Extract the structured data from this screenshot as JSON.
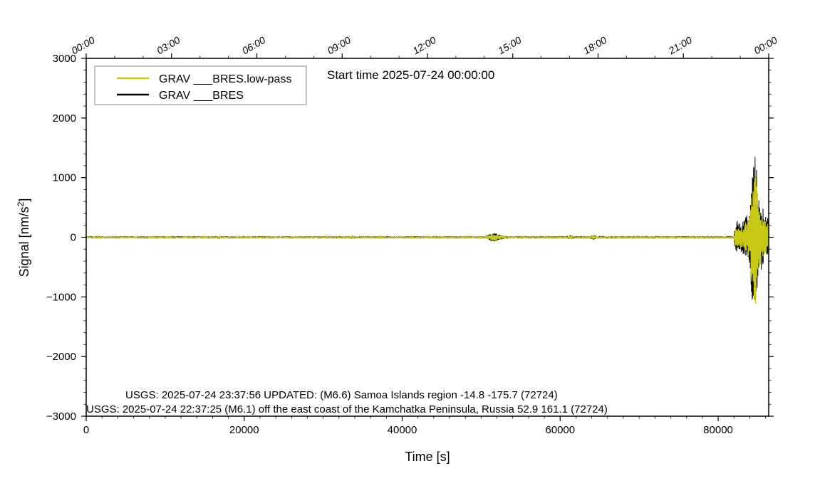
{
  "chart_data": {
    "type": "line",
    "subtitle": "Start time 2025-07-24 00:00:00",
    "xlabel": "Time [s]",
    "ylabel_main": "Signal [nm/s",
    "ylabel_sup": "2",
    "ylabel_close": "]",
    "xlim": [
      0,
      86400
    ],
    "ylim": [
      -3000,
      3000
    ],
    "x_ticks": [
      0,
      20000,
      40000,
      60000,
      80000
    ],
    "x_tick_labels": [
      "0",
      "20000",
      "40000",
      "60000",
      "80000"
    ],
    "y_ticks": [
      -3000,
      -2000,
      -1000,
      0,
      1000,
      2000,
      3000
    ],
    "y_tick_labels": [
      "−3000",
      "−2000",
      "−1000",
      "0",
      "1000",
      "2000",
      "3000"
    ],
    "top_axis_ticks_s": [
      0,
      10800,
      21600,
      32400,
      43200,
      54000,
      64800,
      75600,
      86400
    ],
    "top_axis_labels": [
      "00:00",
      "03:00",
      "06:00",
      "09:00",
      "12:00",
      "15:00",
      "18:00",
      "21:00",
      "00:00"
    ],
    "legend_position": "top-left",
    "grid": false,
    "colors": {
      "low_pass": "#c8c814",
      "raw": "#000000"
    },
    "series": [
      {
        "name": "GRAV ___BRES.low-pass",
        "color": "#c8c814",
        "envelope_points": [
          {
            "x": 0,
            "amp": 12
          },
          {
            "x": 33500,
            "amp": 12
          },
          {
            "x": 33700,
            "amp": 20
          },
          {
            "x": 34000,
            "amp": 12
          },
          {
            "x": 50500,
            "amp": 12
          },
          {
            "x": 51300,
            "amp": 50
          },
          {
            "x": 51800,
            "amp": 60
          },
          {
            "x": 52500,
            "amp": 25
          },
          {
            "x": 53500,
            "amp": 12
          },
          {
            "x": 61000,
            "amp": 15
          },
          {
            "x": 61300,
            "amp": 30
          },
          {
            "x": 61600,
            "amp": 15
          },
          {
            "x": 63800,
            "amp": 15
          },
          {
            "x": 64200,
            "amp": 35
          },
          {
            "x": 64600,
            "amp": 15
          },
          {
            "x": 82000,
            "amp": 15
          },
          {
            "x": 82200,
            "amp": 150
          },
          {
            "x": 83000,
            "amp": 180
          },
          {
            "x": 84000,
            "amp": 350
          },
          {
            "x": 84400,
            "amp": 1050
          },
          {
            "x": 84700,
            "amp": 1250
          },
          {
            "x": 85000,
            "amp": 650
          },
          {
            "x": 85600,
            "amp": 350
          },
          {
            "x": 86400,
            "amp": 200
          }
        ]
      },
      {
        "name": "GRAV ___BRES",
        "color": "#000000",
        "envelope_points": [
          {
            "x": 0,
            "amp": 18
          },
          {
            "x": 33500,
            "amp": 18
          },
          {
            "x": 33700,
            "amp": 28
          },
          {
            "x": 34000,
            "amp": 18
          },
          {
            "x": 50500,
            "amp": 18
          },
          {
            "x": 51300,
            "amp": 65
          },
          {
            "x": 51800,
            "amp": 75
          },
          {
            "x": 52500,
            "amp": 35
          },
          {
            "x": 53500,
            "amp": 18
          },
          {
            "x": 61000,
            "amp": 20
          },
          {
            "x": 61300,
            "amp": 40
          },
          {
            "x": 61600,
            "amp": 20
          },
          {
            "x": 63800,
            "amp": 20
          },
          {
            "x": 64200,
            "amp": 45
          },
          {
            "x": 64600,
            "amp": 20
          },
          {
            "x": 82000,
            "amp": 20
          },
          {
            "x": 82200,
            "amp": 280
          },
          {
            "x": 83000,
            "amp": 250
          },
          {
            "x": 84000,
            "amp": 450
          },
          {
            "x": 84400,
            "amp": 1350
          },
          {
            "x": 84700,
            "amp": 1550
          },
          {
            "x": 85000,
            "amp": 850
          },
          {
            "x": 85600,
            "amp": 500
          },
          {
            "x": 86400,
            "amp": 300
          }
        ]
      }
    ],
    "annotations": [
      "USGS: 2025-07-24 23:37:56 UPDATED: (M6.6) Samoa Islands region -14.8 -175.7 (72724)",
      "USGS: 2025-07-24 22:37:25 (M6.1) off the east coast of the Kamchatka Peninsula, Russia 52.9 161.1 (72724)"
    ]
  }
}
